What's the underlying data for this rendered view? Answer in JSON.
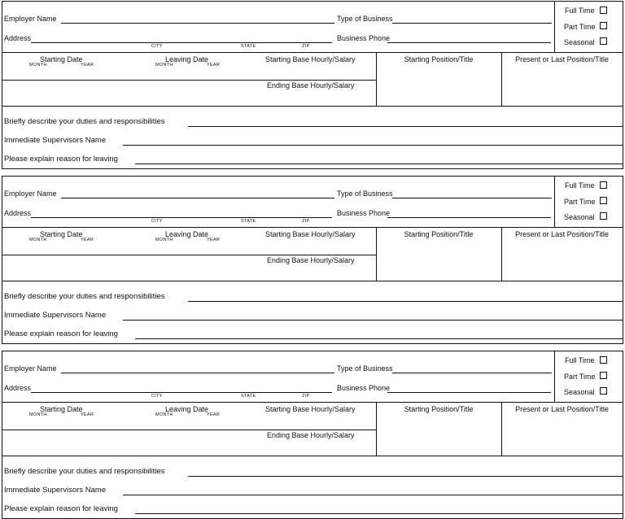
{
  "labels": {
    "employer_name": "Employer Name",
    "type_of_business": "Type of Business",
    "address": "Address",
    "business_phone": "Business Phone",
    "city": "CITY",
    "state": "STATE",
    "zip": "ZIP",
    "full_time": "Full Time",
    "part_time": "Part Time",
    "seasonal": "Seasonal",
    "starting_date": "Starting Date",
    "leaving_date": "Leaving Date",
    "month": "MONTH",
    "year": "YEAR",
    "starting_base": "Starting Base Hourly/Salary",
    "ending_base": "Ending Base Hourly/Salary",
    "starting_position": "Starting Position/Title",
    "present_position": "Present or Last Position/Title",
    "duties": "Briefly describe your duties and responsibilities",
    "supervisor": "Immediate Supervisors Name",
    "reason_leaving": "Please explain reason for leaving"
  },
  "employers": [
    {
      "full_time": false,
      "part_time": false,
      "seasonal": false
    },
    {
      "full_time": false,
      "part_time": false,
      "seasonal": false
    },
    {
      "full_time": false,
      "part_time": false,
      "seasonal": false
    }
  ]
}
